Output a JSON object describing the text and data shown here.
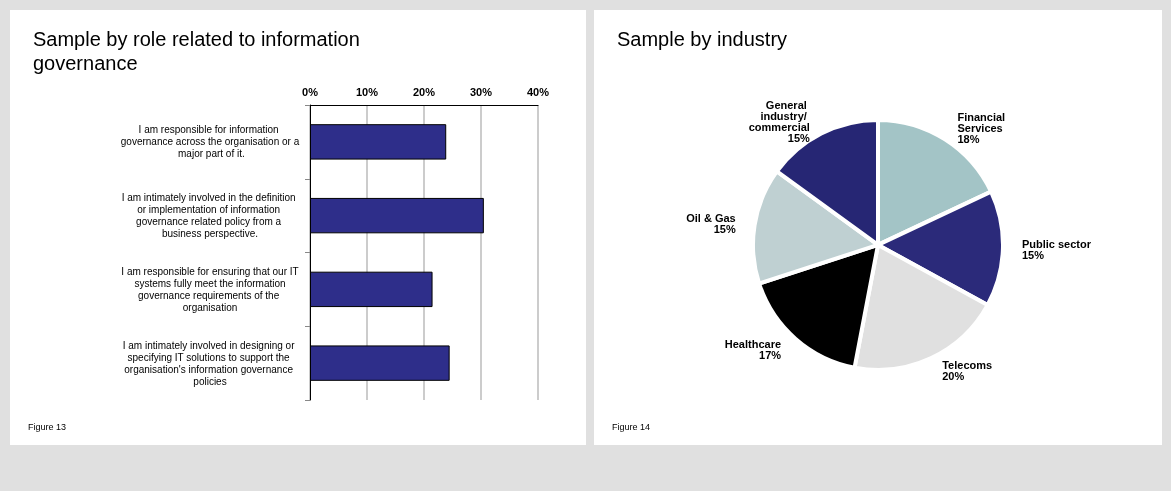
{
  "chart_data": [
    {
      "type": "bar",
      "orientation": "horizontal",
      "title": "Sample by role related to information governance",
      "categories": [
        "I am responsible for information governance across the organisation or a major part of it.",
        "I am intimately involved in the definition or implementation of information governance related policy from a business perspective.",
        "I am responsible for ensuring that our IT systems fully meet the information governance requirements of the organisation",
        "I am intimately involved in designing or specifying IT solutions to support the organisation's information governance policies"
      ],
      "values": [
        23.9,
        30.5,
        21.5,
        24.5
      ],
      "color": "#2e2e8a",
      "xlim": [
        0,
        40
      ],
      "xticks": [
        {
          "value": 0,
          "label": "0%"
        },
        {
          "value": 10,
          "label": "10%"
        },
        {
          "value": 20,
          "label": "20%"
        },
        {
          "value": 30,
          "label": "30%"
        },
        {
          "value": 40,
          "label": "40%"
        }
      ],
      "grid": "x",
      "legend": false,
      "annotations": [
        "Figure 13"
      ]
    },
    {
      "type": "pie",
      "title": "Sample by industry",
      "categories": [
        "Financial Services",
        "Public sector",
        "Telecoms",
        "Healthcare",
        "Oil & Gas",
        "General industry/ commercial"
      ],
      "values": [
        18,
        15,
        20,
        17,
        15,
        15
      ],
      "colors": [
        "#a3c4c6",
        "#2b2a7a",
        "#e0e0e0",
        "#000000",
        "#bfd0d2",
        "#262674"
      ],
      "value_labels": [
        "18%",
        "15%",
        "20%",
        "17%",
        "15%",
        "15%"
      ],
      "legend": false,
      "annotations": [
        "Figure 14"
      ]
    }
  ]
}
